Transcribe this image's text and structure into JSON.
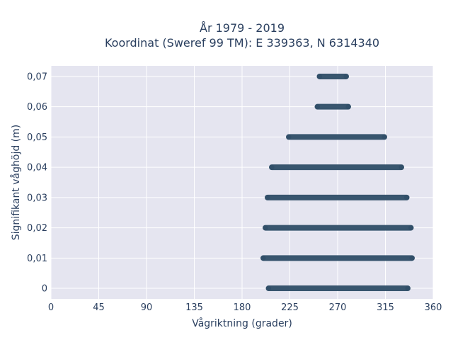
{
  "chart_data": {
    "type": "scatter",
    "title": "År 1979 - 2019",
    "subtitle": "Koordinat (Sweref 99 TM): E 339363, N 6314340",
    "xlabel": "Vågriktning (grader)",
    "ylabel": "Signifikant våghöjd (m)",
    "xlim": [
      0,
      360
    ],
    "ylim": [
      -0.0035,
      0.0735
    ],
    "xticks": [
      0,
      45,
      90,
      135,
      180,
      225,
      270,
      315,
      360
    ],
    "xtick_labels": [
      "0",
      "45",
      "90",
      "135",
      "180",
      "225",
      "270",
      "315",
      "360"
    ],
    "yticks": [
      0,
      0.01,
      0.02,
      0.03,
      0.04,
      0.05,
      0.06,
      0.07
    ],
    "ytick_labels": [
      "0",
      "0,01",
      "0,02",
      "0,03",
      "0,04",
      "0,05",
      "0,06",
      "0,07"
    ],
    "grid": true,
    "legend": false,
    "marker_color": "#2f4e68",
    "plot_background": "#e5e5f0",
    "series": [
      {
        "bands": [
          {
            "y": 0.0,
            "x_min": 205,
            "x_max": 336
          },
          {
            "y": 0.01,
            "x_min": 200,
            "x_max": 340
          },
          {
            "y": 0.02,
            "x_min": 202,
            "x_max": 339
          },
          {
            "y": 0.03,
            "x_min": 204,
            "x_max": 335
          },
          {
            "y": 0.04,
            "x_min": 208,
            "x_max": 330
          },
          {
            "y": 0.05,
            "x_min": 224,
            "x_max": 314
          },
          {
            "y": 0.06,
            "x_min": 251,
            "x_max": 280
          },
          {
            "y": 0.07,
            "x_min": 253,
            "x_max": 278
          }
        ]
      }
    ]
  }
}
